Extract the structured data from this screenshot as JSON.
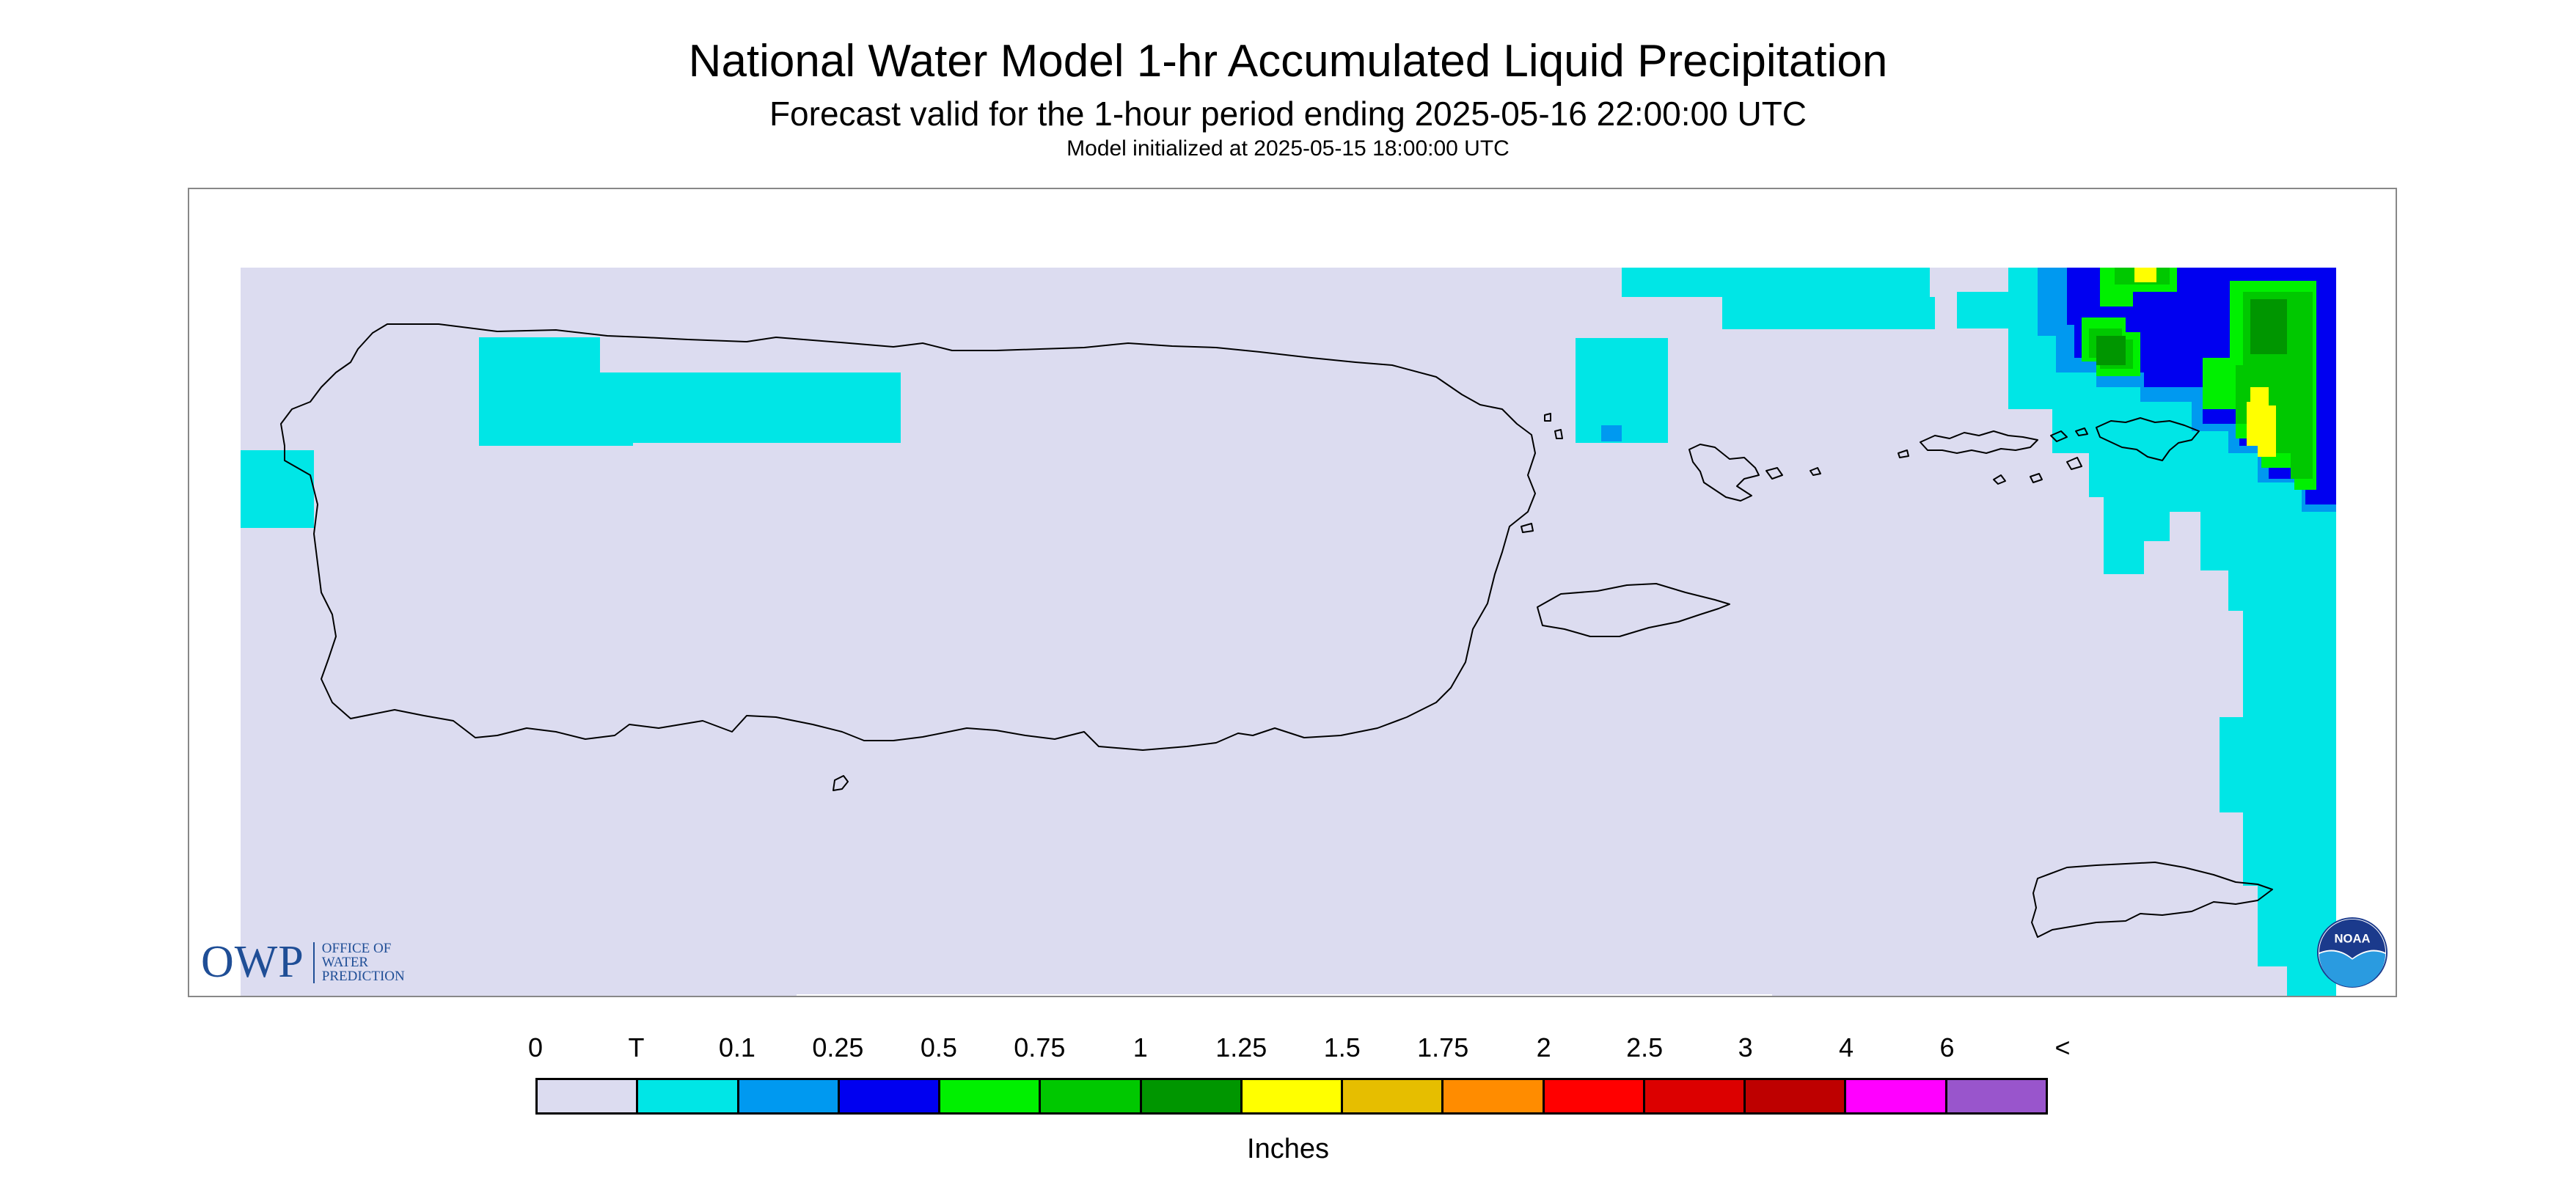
{
  "header": {
    "title": "National Water Model 1-hr Accumulated Liquid Precipitation",
    "subtitle": "Forecast valid for the 1-hour period ending 2025-05-16 22:00:00 UTC",
    "init": "Model initialized at 2025-05-15 18:00:00 UTC"
  },
  "map": {
    "background_color": "#dcdcf0",
    "coastline_color": "#000000",
    "regions": [
      "Puerto Rico",
      "Vieques",
      "Culebra",
      "U.S. Virgin Islands",
      "St. Croix"
    ]
  },
  "logos": {
    "owp_abbrev": "OWP",
    "owp_line1": "OFFICE OF",
    "owp_line2": "WATER",
    "owp_line3": "PREDICTION",
    "noaa_text": "NOAA"
  },
  "legend": {
    "labels": [
      "0",
      "T",
      "0.1",
      "0.25",
      "0.5",
      "0.75",
      "1",
      "1.25",
      "1.5",
      "1.75",
      "2",
      "2.5",
      "3",
      "4",
      "6",
      "<"
    ],
    "colors": [
      "#dcdcf0",
      "#00e6e6",
      "#0099f0",
      "#0000f0",
      "#00f000",
      "#00c800",
      "#009600",
      "#ffff00",
      "#e6be00",
      "#ff8c00",
      "#ff0000",
      "#dc0000",
      "#be0000",
      "#ff00ff",
      "#9955cc"
    ],
    "units": "Inches"
  }
}
